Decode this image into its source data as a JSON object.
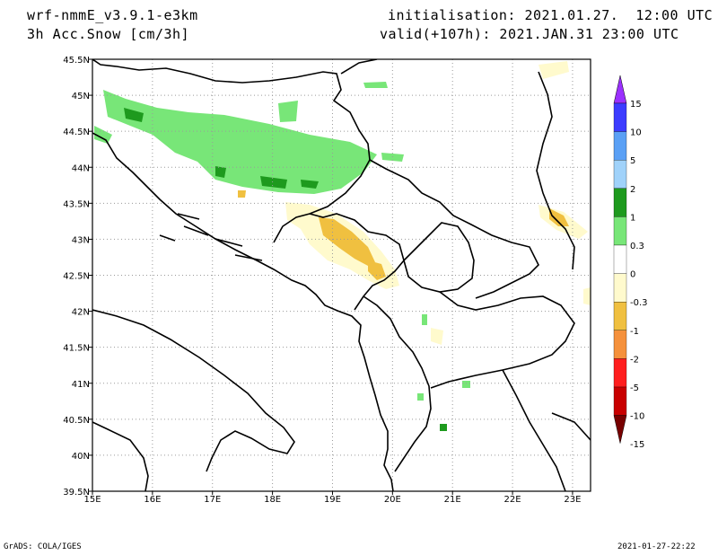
{
  "header": {
    "model": "wrf-nmmE_v3.9.1-e3km",
    "field": "3h Acc.Snow [cm/3h]",
    "init": "initialisation: 2021.01.27.  12:00 UTC",
    "valid": "valid(+107h): 2021.JAN.31 23:00 UTC"
  },
  "footer": {
    "software": "GrADS: COLA/IGES",
    "timestamp": "2021-01-27-22:22"
  },
  "map": {
    "lon_labels": [
      "15E",
      "16E",
      "17E",
      "18E",
      "19E",
      "20E",
      "21E",
      "22E",
      "23E"
    ],
    "lat_labels": [
      "45.5N",
      "45N",
      "44.5N",
      "44N",
      "43.5N",
      "43N",
      "42.5N",
      "42N",
      "41.5N",
      "41N",
      "40.5N",
      "40N",
      "39.5N"
    ],
    "lon_range": [
      15,
      23.3
    ],
    "lat_range": [
      39.5,
      45.5
    ],
    "grid": true
  },
  "colorbar": {
    "labels": [
      "15",
      "10",
      "5",
      "2",
      "1",
      "0.3",
      "0",
      "-0.3",
      "-1",
      "-2",
      "-5",
      "-10",
      "-15"
    ],
    "colors": [
      "#9b30ff",
      "#3c3cff",
      "#5aa0f5",
      "#a0d2fa",
      "#1e9a1e",
      "#78e678",
      "#ffffff",
      "#fffacd",
      "#f0c040",
      "#f5913c",
      "#ff1e1e",
      "#c80000",
      "#780000"
    ]
  }
}
